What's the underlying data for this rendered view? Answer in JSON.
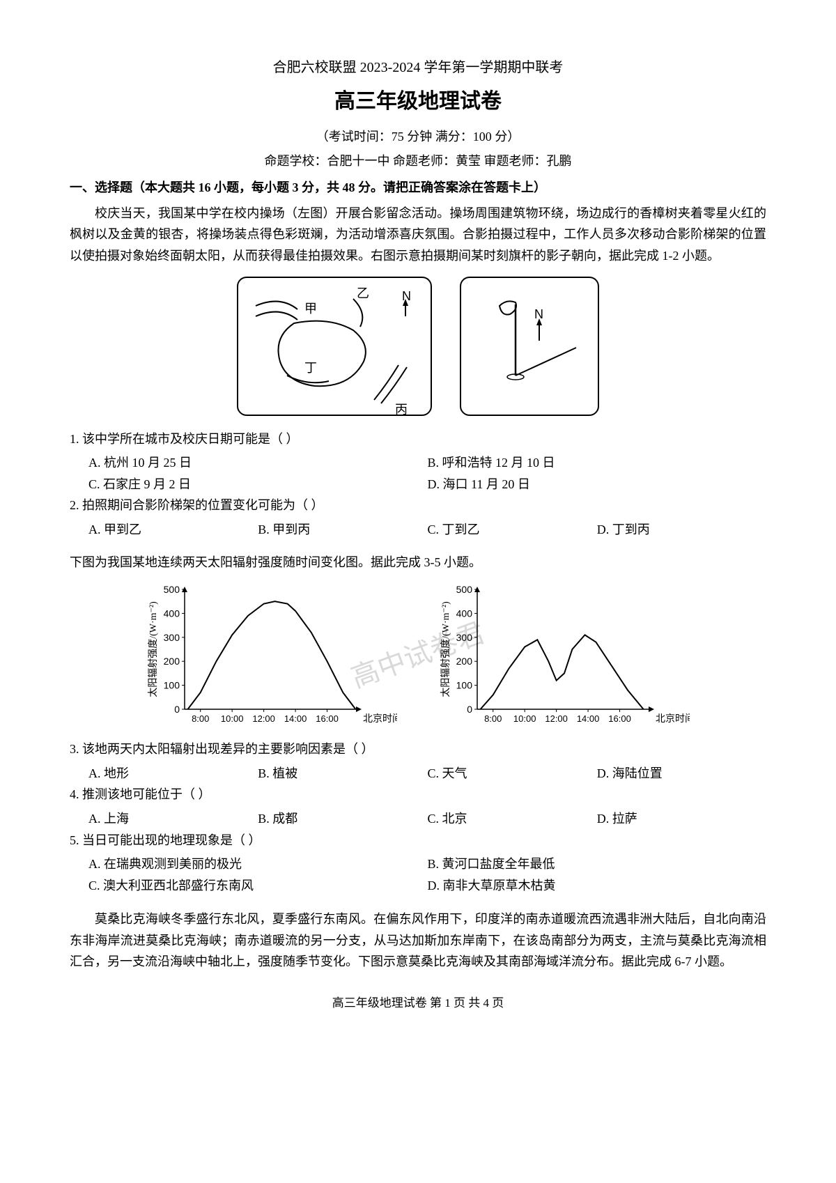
{
  "header": {
    "line1": "合肥六校联盟 2023-2024 学年第一学期期中联考",
    "title": "高三年级地理试卷",
    "subtitle": "（考试时间：75 分钟  满分：100 分）",
    "credits": "命题学校：合肥十一中  命题老师：黄莹  审题老师：孔鹏"
  },
  "section1": {
    "header": "一、选择题（本大题共 16 小题，每小题 3 分，共 48 分。请把正确答案涂在答题卡上）",
    "passage1": "校庆当天，我国某中学在校内操场（左图）开展合影留念活动。操场周围建筑物环绕，场边成行的香樟树夹着零星火红的枫树以及金黄的银杏，将操场装点得色彩斑斓，为活动增添喜庆氛围。合影拍摄过程中，工作人员多次移动合影阶梯架的位置以使拍摄对象始终面朝太阳，从而获得最佳拍摄效果。右图示意拍摄期间某时刻旗杆的影子朝向，据此完成 1-2 小题。"
  },
  "diagram1": {
    "labels": {
      "jia": "甲",
      "yi": "乙",
      "bing": "丙",
      "ding": "丁",
      "north": "N"
    }
  },
  "q1": {
    "stem": "1.  该中学所在城市及校庆日期可能是（      ）",
    "A": "A.  杭州      10 月 25 日",
    "B": "B.  呼和浩特   12 月 10 日",
    "C": "C.  石家庄    9 月 2 日",
    "D": "D.  海口      11 月 20 日"
  },
  "q2": {
    "stem": "2.  拍照期间合影阶梯架的位置变化可能为（      ）",
    "A": "A.  甲到乙",
    "B": "B.  甲到丙",
    "C": "C.  丁到乙",
    "D": "D.  丁到丙"
  },
  "passage2": "下图为我国某地连续两天太阳辐射强度随时间变化图。据此完成 3-5 小题。",
  "charts": {
    "ylabel": "太阳辐射强度/(W·m⁻²)",
    "xlabel": "北京时间",
    "ylim": [
      0,
      500
    ],
    "ytick_step": 100,
    "xticks": [
      "8:00",
      "10:00",
      "12:00",
      "14:00",
      "16:00"
    ],
    "line_color": "#000000",
    "background_color": "#ffffff",
    "left": {
      "type": "line",
      "x": [
        7.2,
        8,
        9,
        10,
        11,
        12,
        12.7,
        13.5,
        14,
        15,
        16,
        17,
        17.8
      ],
      "y": [
        0,
        70,
        200,
        310,
        390,
        440,
        450,
        440,
        410,
        320,
        200,
        70,
        0
      ]
    },
    "right": {
      "type": "line",
      "x": [
        7.2,
        8,
        9,
        10,
        10.8,
        11.5,
        12,
        12.5,
        13,
        13.8,
        14.5,
        15.5,
        16.5,
        17.5
      ],
      "y": [
        0,
        60,
        170,
        260,
        290,
        200,
        120,
        150,
        250,
        310,
        280,
        180,
        80,
        0
      ]
    }
  },
  "q3": {
    "stem": "3.  该地两天内太阳辐射出现差异的主要影响因素是（      ）",
    "A": "A.  地形",
    "B": "B.  植被",
    "C": "C.  天气",
    "D": "D.  海陆位置"
  },
  "q4": {
    "stem": "4.  推测该地可能位于（      ）",
    "A": "A.  上海",
    "B": "B.  成都",
    "C": "C.  北京",
    "D": "D.  拉萨"
  },
  "q5": {
    "stem": "5.  当日可能出现的地理现象是（      ）",
    "A": "A.  在瑞典观测到美丽的极光",
    "B": "B.  黄河口盐度全年最低",
    "C": "C.  澳大利亚西北部盛行东南风",
    "D": "D.  南非大草原草木枯黄"
  },
  "passage3": "莫桑比克海峡冬季盛行东北风，夏季盛行东南风。在偏东风作用下，印度洋的南赤道暖流西流遇非洲大陆后，自北向南沿东非海岸流进莫桑比克海峡；南赤道暖流的另一分支，从马达加斯加东岸南下，在该岛南部分为两支，主流与莫桑比克海流相汇合，另一支流沿海峡中轴北上，强度随季节变化。下图示意莫桑比克海峡及其南部海域洋流分布。据此完成 6-7 小题。",
  "footer": "高三年级地理试卷   第 1 页 共 4 页",
  "watermark": "高中试卷君"
}
